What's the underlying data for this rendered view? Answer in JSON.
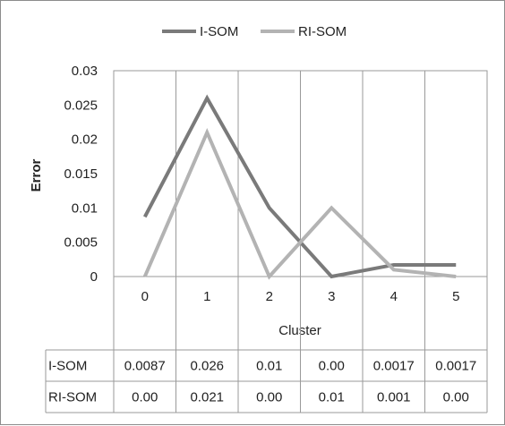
{
  "chart_data": {
    "type": "line",
    "x": [
      0,
      1,
      2,
      3,
      4,
      5
    ],
    "categories": [
      "0",
      "1",
      "2",
      "3",
      "4",
      "5"
    ],
    "series": [
      {
        "name": "I-SOM",
        "color": "#7a7a7a",
        "values": [
          0.0087,
          0.026,
          0.01,
          0.0,
          0.0017,
          0.0017
        ]
      },
      {
        "name": "RI-SOM",
        "color": "#b3b3b3",
        "values": [
          0.0,
          0.021,
          0.0,
          0.01,
          0.001,
          0.0
        ]
      }
    ],
    "table": [
      {
        "label": "I-SOM",
        "cells": [
          "0.0087",
          "0.026",
          "0.01",
          "0.00",
          "0.0017",
          "0.0017"
        ]
      },
      {
        "label": "RI-SOM",
        "cells": [
          "0.00",
          "0.021",
          "0.00",
          "0.01",
          "0.001",
          "0.00"
        ]
      }
    ],
    "xlabel": "Cluster",
    "ylabel": "Error",
    "ylim": [
      0,
      0.03
    ],
    "yticks": [
      "0",
      "0.005",
      "0.01",
      "0.015",
      "0.02",
      "0.025",
      "0.03"
    ],
    "grid": "vertical",
    "legend": "top-center"
  }
}
